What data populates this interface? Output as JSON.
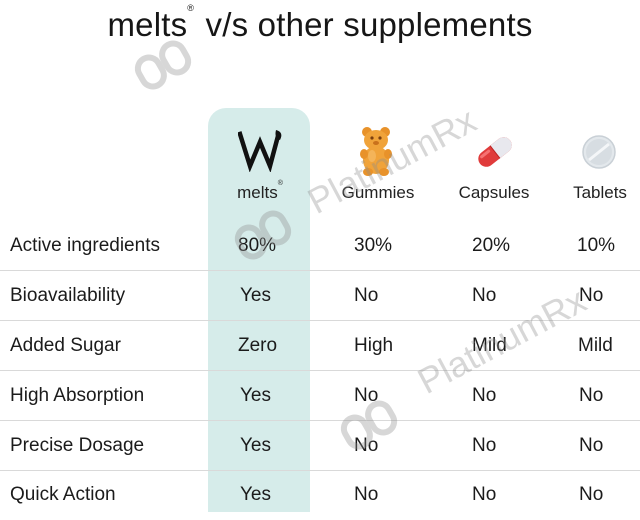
{
  "title": {
    "brand": "melts",
    "mark": "®",
    "rest": "v/s other supplements"
  },
  "columns": [
    {
      "label": "melts",
      "mark": "®",
      "icon": "melts-logo-icon"
    },
    {
      "label": "Gummies",
      "icon": "gummy-bear-icon"
    },
    {
      "label": "Capsules",
      "icon": "capsule-icon"
    },
    {
      "label": "Tablets",
      "icon": "tablet-icon"
    }
  ],
  "rows": [
    {
      "label": "Active ingredients",
      "values": [
        "80%",
        "30%",
        "20%",
        "10%"
      ]
    },
    {
      "label": "Bioavailability",
      "values": [
        "Yes",
        "No",
        "No",
        "No"
      ]
    },
    {
      "label": "Added Sugar",
      "values": [
        "Zero",
        "High",
        "Mild",
        "Mild"
      ]
    },
    {
      "label": "High Absorption",
      "values": [
        "Yes",
        "No",
        "No",
        "No"
      ]
    },
    {
      "label": "Precise Dosage",
      "values": [
        "Yes",
        "No",
        "No",
        "No"
      ]
    },
    {
      "label": "Quick Action",
      "values": [
        "Yes",
        "No",
        "No",
        "No"
      ]
    }
  ],
  "watermark": {
    "text": "PlatinumRx"
  },
  "colors": {
    "highlight": "#d6ecea",
    "text": "#1b1b1b",
    "gummy": "#f0a33a",
    "capsule": "#e03b3b"
  }
}
